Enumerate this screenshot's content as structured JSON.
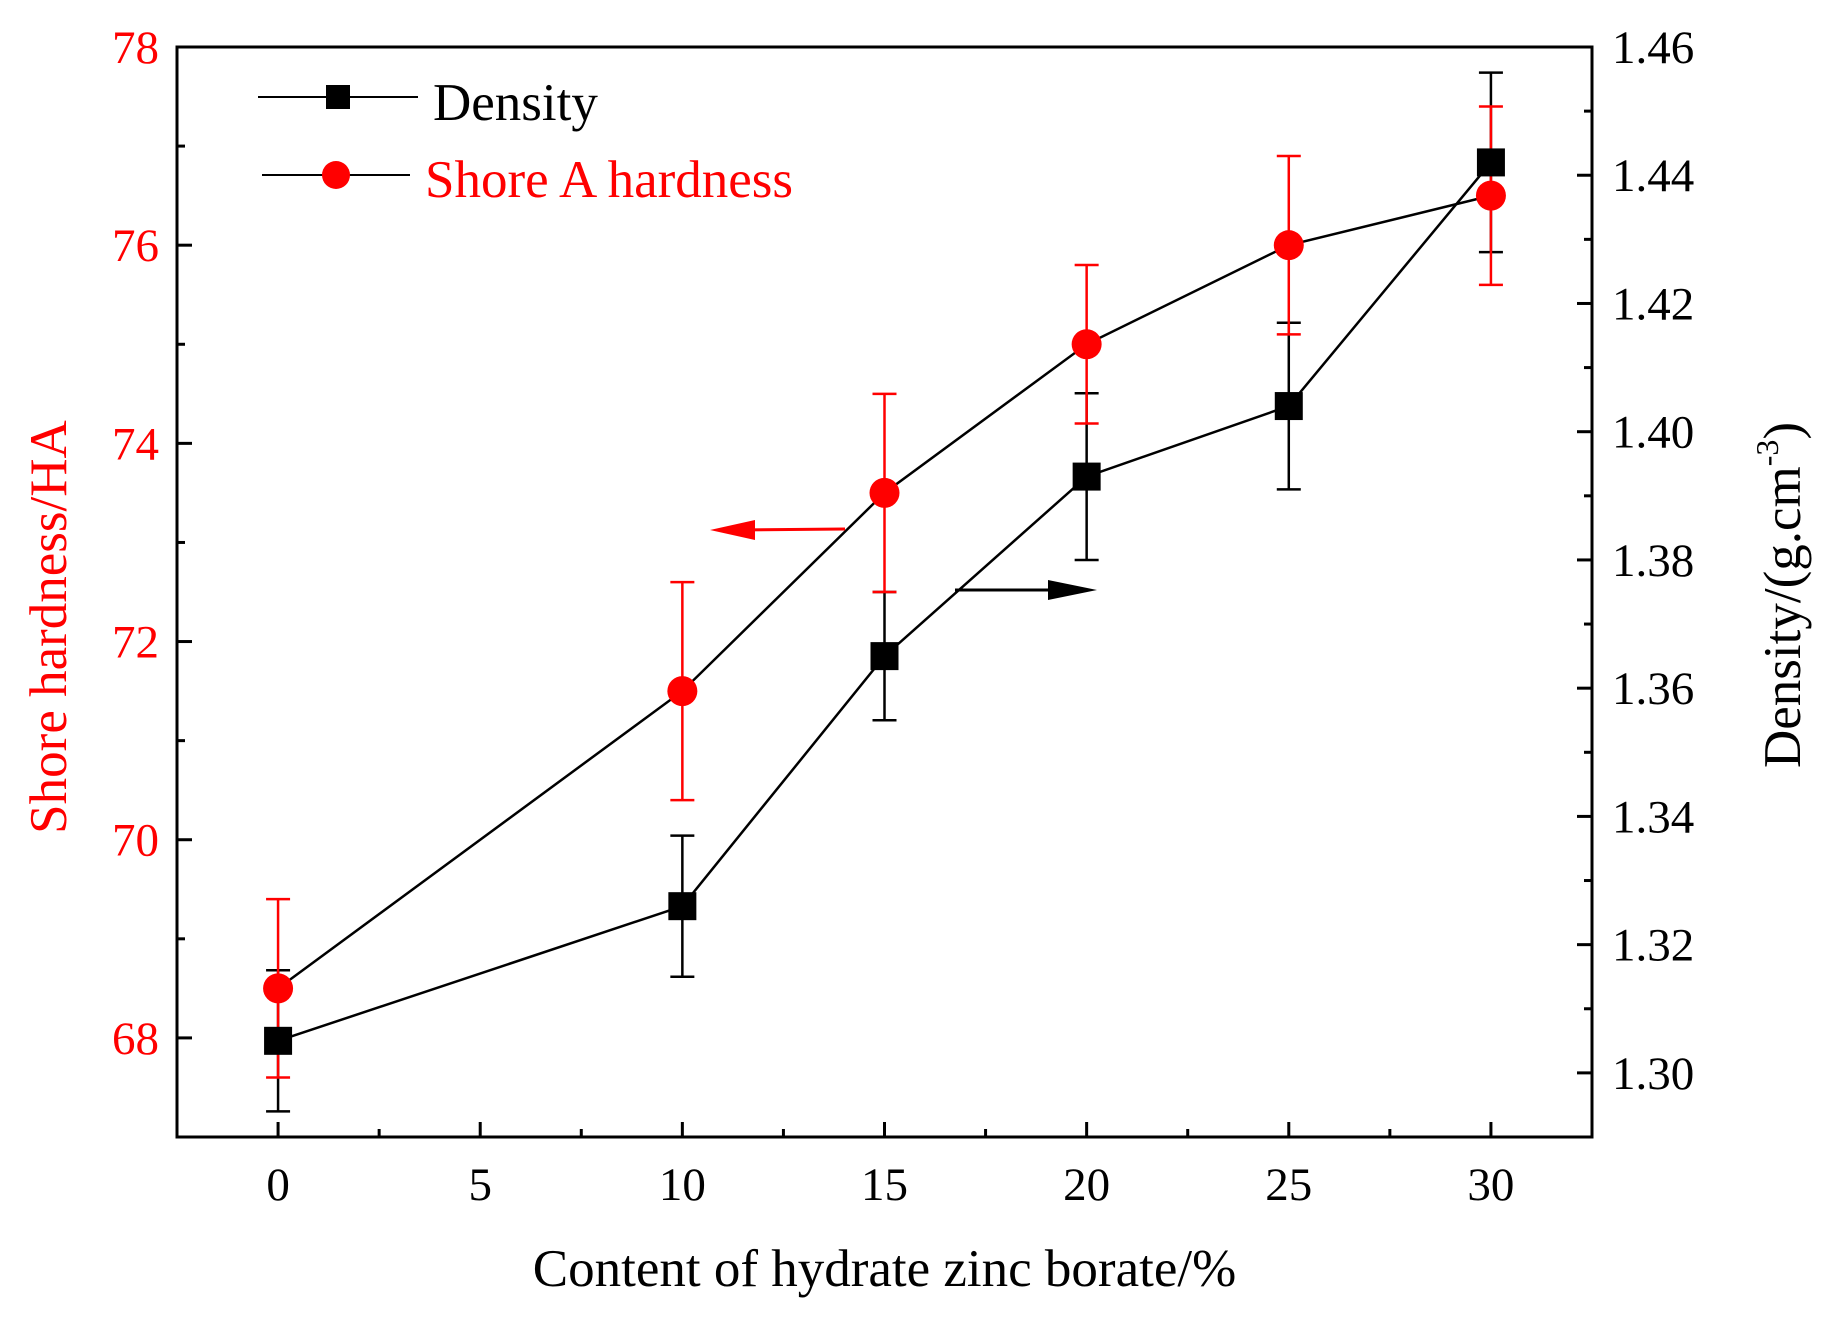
{
  "chart_data": {
    "type": "line",
    "xlabel": "Content of hydrate zinc borate/%",
    "ylabel_left": "Shore hardness/HA",
    "ylabel_right_main": "Density/(g.cm",
    "ylabel_right_sup": "-3",
    "ylabel_right_close": ")",
    "xlim": [
      -2.5,
      32.5
    ],
    "ylim_left": [
      67,
      78
    ],
    "ylim_right": [
      1.29,
      1.46
    ],
    "x_ticks": [
      0,
      5,
      10,
      15,
      20,
      25,
      30
    ],
    "x_tick_labels": [
      "0",
      "5",
      "10",
      "15",
      "20",
      "25",
      "30"
    ],
    "y_left_ticks": [
      68,
      70,
      72,
      74,
      76,
      78
    ],
    "y_left_tick_labels": [
      "68",
      "70",
      "72",
      "74",
      "76",
      "78"
    ],
    "y_right_ticks": [
      1.3,
      1.32,
      1.34,
      1.36,
      1.38,
      1.4,
      1.42,
      1.44,
      1.46
    ],
    "y_right_tick_labels": [
      "1.30",
      "1.32",
      "1.34",
      "1.36",
      "1.38",
      "1.40",
      "1.42",
      "1.44",
      "1.46"
    ],
    "series": [
      {
        "name": "Density",
        "axis": "right",
        "marker": "square",
        "color": "#000000",
        "x": [
          0,
          10,
          15,
          20,
          25,
          30
        ],
        "values": [
          1.305,
          1.326,
          1.365,
          1.393,
          1.404,
          1.442
        ],
        "error": [
          0.011,
          0.011,
          0.01,
          0.013,
          0.013,
          0.014
        ]
      },
      {
        "name": "Shore A hardness",
        "axis": "left",
        "marker": "circle",
        "color": "#ff0000",
        "x": [
          0,
          10,
          15,
          20,
          25,
          30
        ],
        "values": [
          68.5,
          71.5,
          73.5,
          75.0,
          76.0,
          76.5
        ],
        "error": [
          0.9,
          1.1,
          1.0,
          0.8,
          0.9,
          0.9
        ]
      }
    ],
    "annotations": [
      {
        "name": "left-arrow",
        "direction": "left",
        "color": "#ff0000",
        "meaning": "hardness series uses left axis"
      },
      {
        "name": "right-arrow",
        "direction": "right",
        "color": "#000000",
        "meaning": "density series uses right axis"
      }
    ],
    "legend": {
      "position": "top-left",
      "entries": [
        {
          "label": "Density",
          "color": "#000000",
          "text_color": "#000000",
          "marker": "square"
        },
        {
          "label": "Shore A hardness",
          "color": "#ff0000",
          "text_color": "#ff0000",
          "marker": "circle"
        }
      ]
    },
    "colors": {
      "left_axis": "#ff0000",
      "right_axis": "#000000"
    },
    "grid": false
  }
}
